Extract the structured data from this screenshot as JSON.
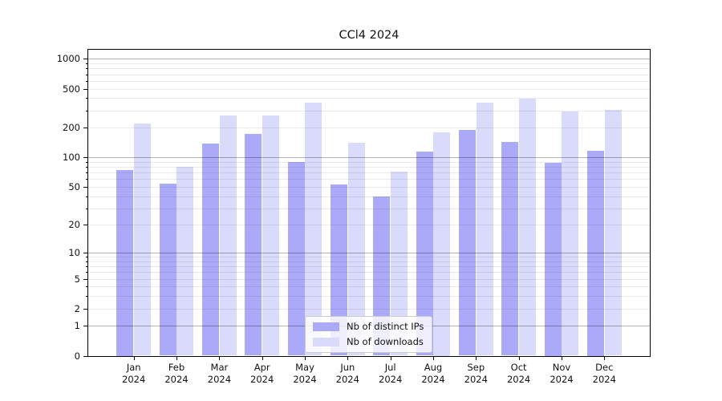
{
  "chart_data": {
    "type": "bar",
    "title": "CCl4 2024",
    "categories": [
      "Jan",
      "Feb",
      "Mar",
      "Apr",
      "May",
      "Jun",
      "Jul",
      "Aug",
      "Sep",
      "Oct",
      "Nov",
      "Dec"
    ],
    "year": "2024",
    "series": [
      {
        "name": "Nb of distinct IPs",
        "color": "#aaaaf8",
        "values": [
          75,
          54,
          138,
          172,
          89,
          53,
          40,
          115,
          189,
          144,
          88,
          118
        ]
      },
      {
        "name": "Nb of downloads",
        "color": "#dadafa",
        "values": [
          221,
          80,
          265,
          268,
          358,
          142,
          72,
          180,
          362,
          398,
          291,
          306
        ]
      }
    ],
    "xlabel": "",
    "ylabel": "",
    "yscale": "log1p",
    "yticks": [
      0,
      1,
      2,
      5,
      10,
      20,
      50,
      100,
      200,
      500,
      1000
    ],
    "ylim": [
      0,
      1237
    ],
    "grid": true,
    "legend_position": "lower center"
  },
  "colors": {
    "major_grid": "rgba(0,0,0,0.30)",
    "minor_grid": "rgba(0,0,0,0.08)",
    "axis": "#000000",
    "background": "#ffffff"
  }
}
